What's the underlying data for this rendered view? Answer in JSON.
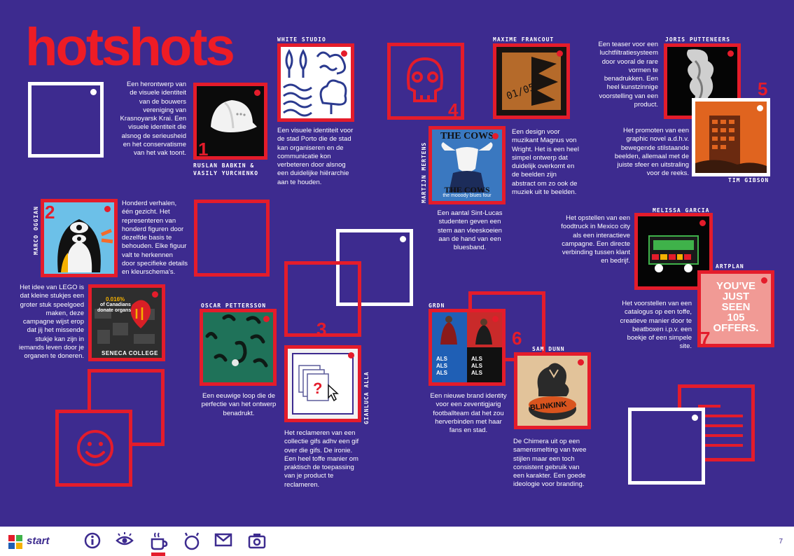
{
  "page": {
    "title": "hotshots",
    "page_number": "7"
  },
  "numbers": [
    "1",
    "2",
    "3",
    "4",
    "5",
    "6",
    "7"
  ],
  "credits": {
    "ruslan": "RUSLAN BABKIN &\nVASILY YURCHENKO",
    "white_studio": "WHITE STUDIO",
    "maxime": "MAXIME FRANCOUT",
    "joris": "JORIS PUTTENEERS",
    "martijn": "MARTIJN MERTENS",
    "tim": "TIM GIBSON",
    "marco": "MARCO OGGIAN",
    "melissa": "MELISSA GARCIA",
    "artplan": "ARTPLAN",
    "oscar": "OSCAR PETTERSSON",
    "grdn": "GRDN",
    "sam": "SAM DUNN",
    "gianluca": "GIANLUCA ALLA"
  },
  "descriptions": {
    "ruslan": "Een herontwerp van de visuele identiteit van de bouwers vereniging van Krasnoyarsk Krai. Een visuele identiteit die alsnog de serieusheid en het conservatisme van het vak toont.",
    "white_studio": "Een visuele identiteit voor de stad Porto die de stad kan organiseren en de communicatie kon verbeteren door alsnog een duidelijke hiërarchie aan te houden.",
    "maxime": "Een design voor muzikant Magnus von Wright. Het is een heel simpel ontwerp dat duidelijk overkomt en de beelden zijn abstract om zo ook de muziek uit te beelden.",
    "joris": "Een teaser voor een luchtfiltratiesysteem door vooral de rare vormen te benadrukken. Een heel kunstzinnige voorstelling van een product.",
    "tim": "Het promoten van een graphic novel a.d.h.v. bewegende stilstaande beelden, allemaal met de juiste sfeer en uitstraling voor de reeks.",
    "martijn": "Een aantal Sint-Lucas studenten geven een stem aan vleeskoeien aan de hand van een bluesband.",
    "marco": "Honderd verhalen, één gezicht. Het representeren van honderd figuren door dezelfde basis te behouden. Elke figuur valt te herkennen door specifieke details en kleurschema's.",
    "lego": "Het idee van LEGO is dat kleine stukjes een groter stuk speelgoed maken, deze campagne wijst erop dat jij het missende stukje kan zijn in iemands leven door je organen te doneren.",
    "melissa": "Het opstellen van een foodtruck in Mexico city als een interactieve campagne. Een directe verbinding tussen klant en bedrijf.",
    "artplan": "Het voorstellen van een catalogus op een toffe, creatieve manier door te beatboxen i.p.v. een boekje of een simpele site.",
    "oscar": "Een eeuwige loop die de perfectie van het ontwerp benadrukt.",
    "gianluca": "Het reclameren van een collectie gifs adhv een gif over die gifs. De ironie. Een heel toffe manier om praktisch de toepassing van je product te reclameren.",
    "grdn": "Een nieuwe brand identity voor een zeventigjarig footballteam dat het zou herverbinden met haar fans en stad.",
    "sam": "De Chimera uit op een samensmelting van twee stijlen maar een toch consistent gebruik van een karakter. Een goede ideologie voor branding."
  },
  "thumb_text": {
    "cows_top": "THE COWS",
    "cows_bottom": "THE COWS",
    "cows_caption": "the mooody blues four",
    "maxime_cover": "01/05",
    "lego_line1": "0.016%",
    "lego_line2": "of Canadians",
    "lego_line3": "donate organs",
    "lego_brand": "SENECA COLLEGE",
    "artplan_l1": "YOU'VE",
    "artplan_l2": "JUST",
    "artplan_l3": "SEEN",
    "artplan_l4": "105",
    "artplan_l5": "OFFERS.",
    "blinkink": "BLINKINK",
    "grdn_als": "ALS"
  },
  "taskbar": {
    "start_label": "start",
    "icons": [
      "info-icon",
      "eye-icon",
      "coffee-icon",
      "bell-icon",
      "mail-icon",
      "camera-icon"
    ]
  },
  "colors": {
    "background": "#3d2b8f",
    "accent_red": "#e41c2b",
    "white": "#ffffff",
    "taskbar": "#ffffff"
  }
}
